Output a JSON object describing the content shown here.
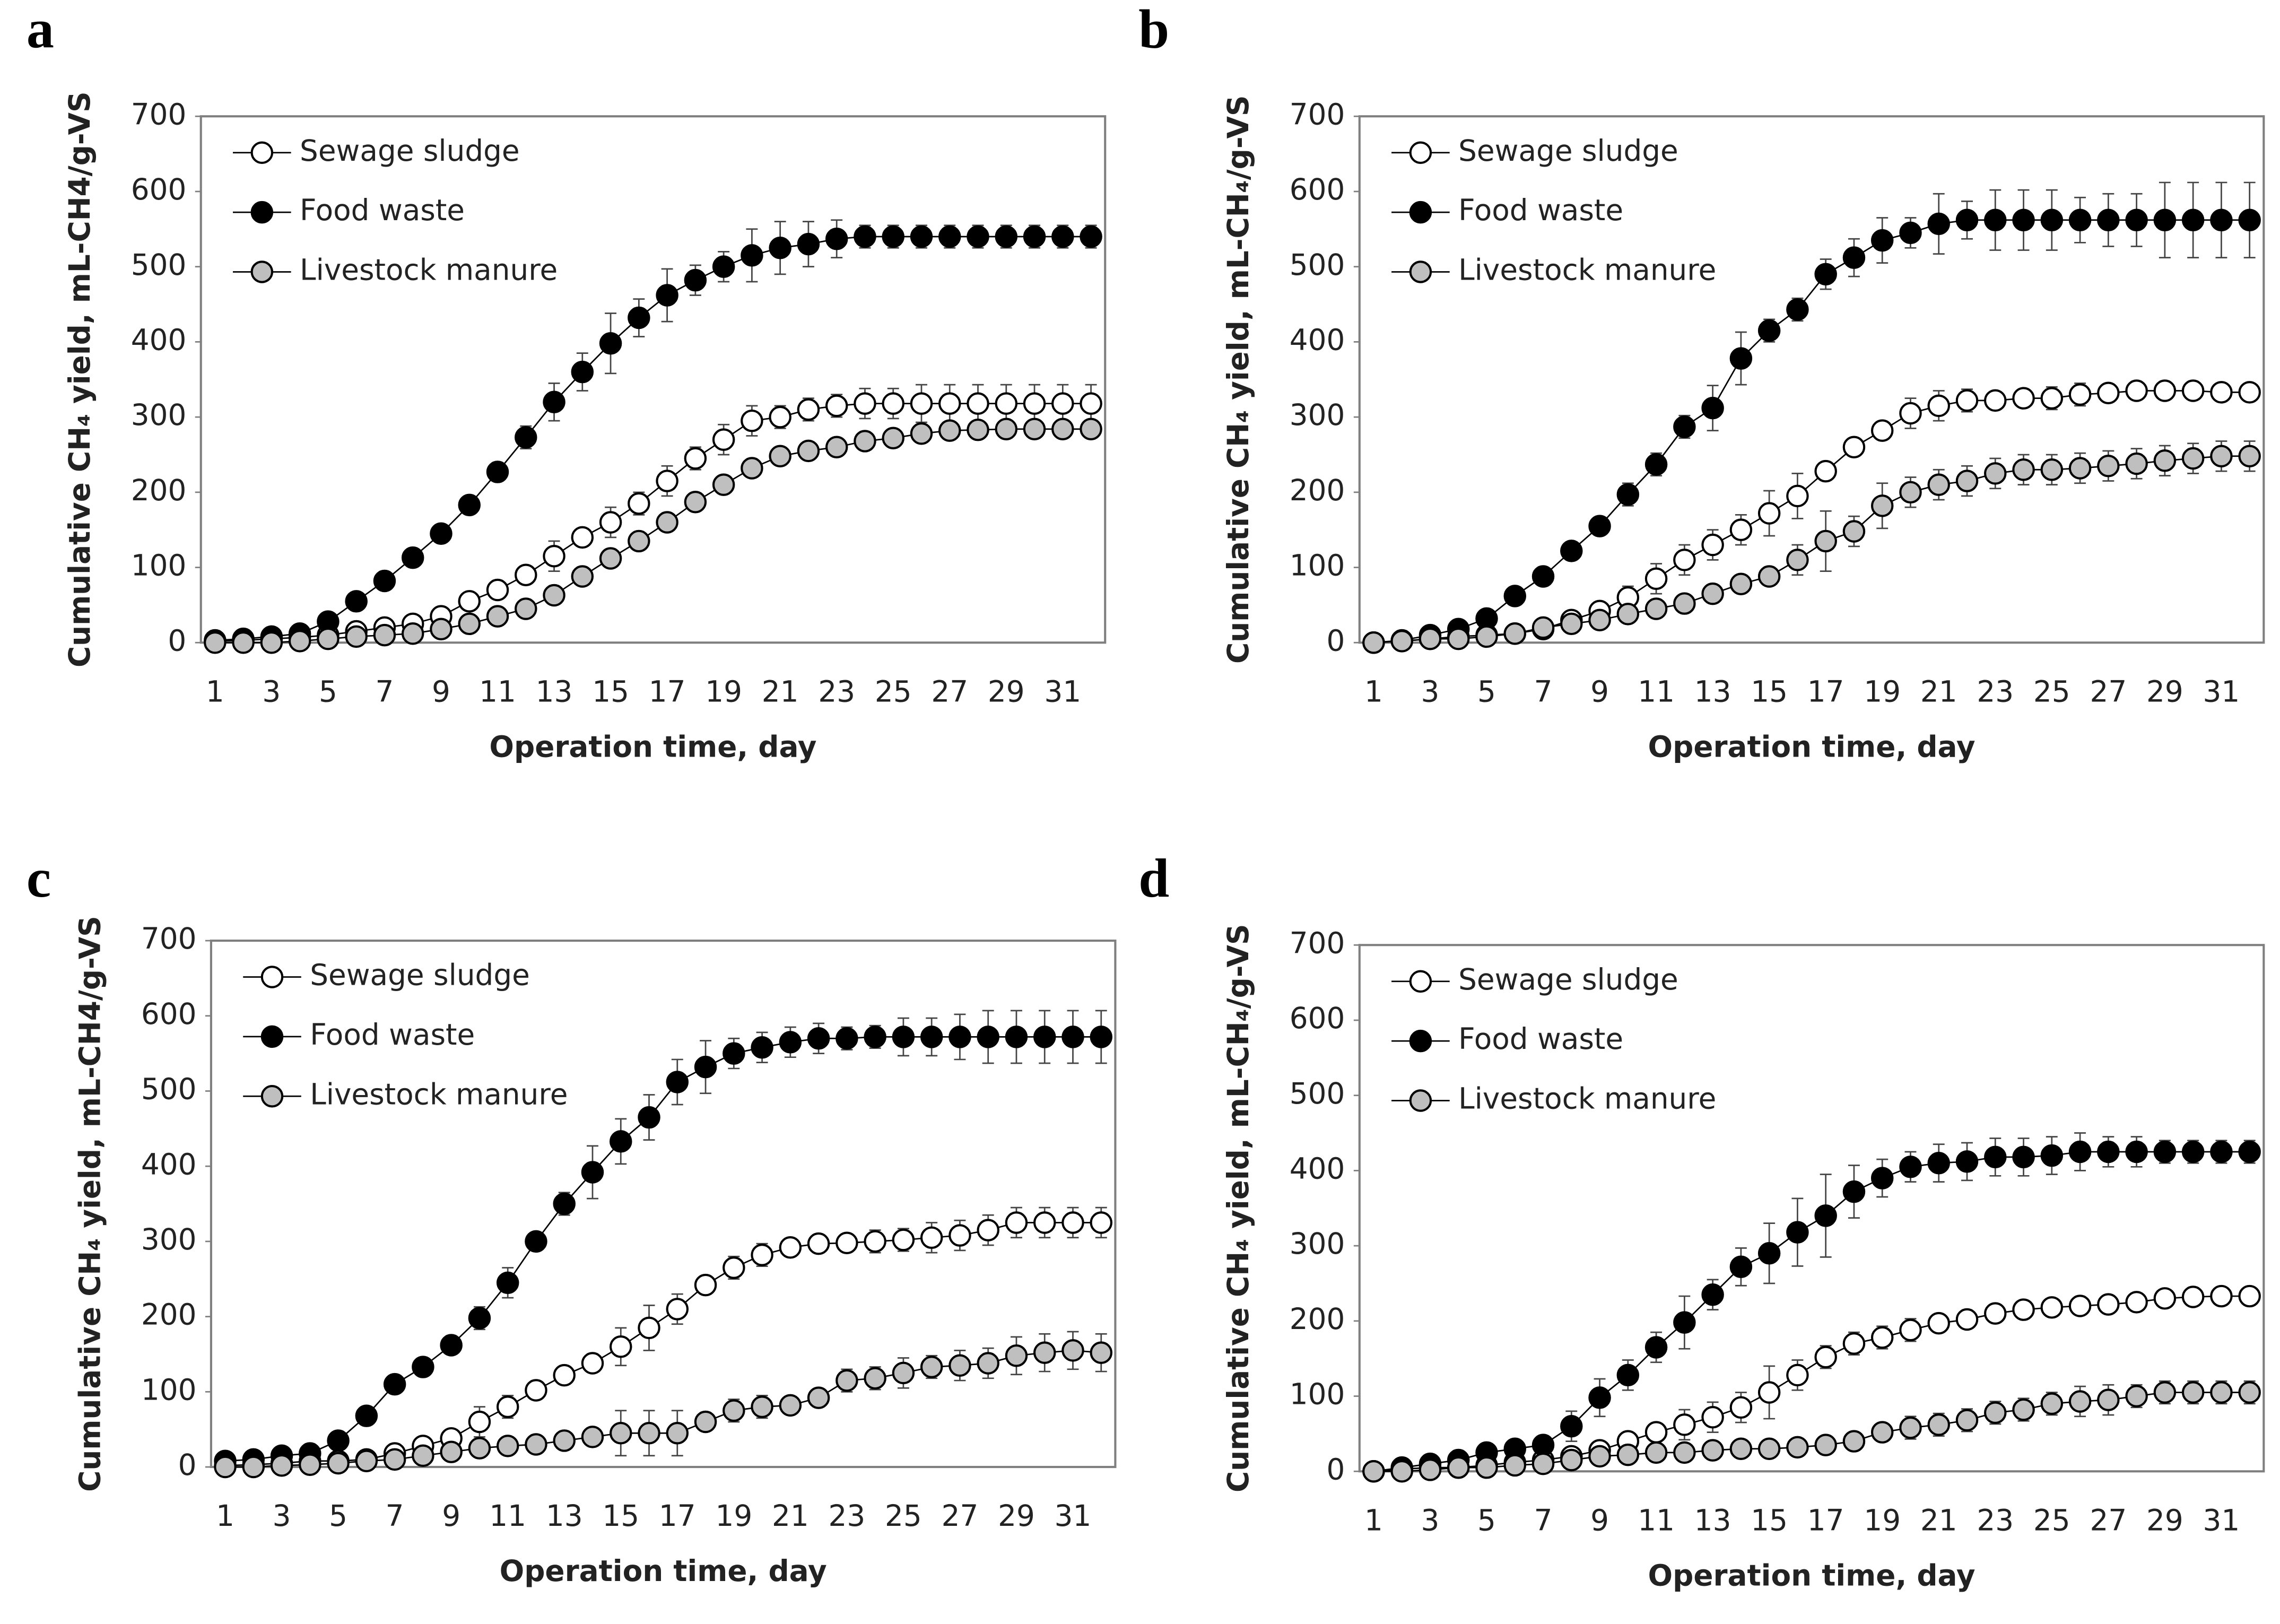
{
  "chart_data": [
    {
      "type": "line",
      "panel_label": "a",
      "y_label": "Cumulative CH₄ yield, mL-CH4/g-VS",
      "x_label": "Operation time, day",
      "categories": [
        "1",
        null,
        "3",
        null,
        "5",
        null,
        "7",
        null,
        "9",
        null,
        "11",
        null,
        "13",
        null,
        "15",
        null,
        "17",
        null,
        "19",
        null,
        "21",
        null,
        "23",
        null,
        "25",
        null,
        "27",
        null,
        "29",
        null,
        "31",
        null
      ],
      "ylim": [
        0,
        700
      ],
      "yticks": [
        0,
        100,
        200,
        300,
        400,
        500,
        600,
        700
      ],
      "grid": false,
      "legend": "upper left",
      "series": [
        {
          "name": "Sewage sludge",
          "color": "#ffffff",
          "values": [
            2,
            3,
            5,
            7,
            10,
            15,
            20,
            25,
            35,
            55,
            70,
            90,
            115,
            140,
            160,
            185,
            215,
            245,
            270,
            295,
            300,
            310,
            315,
            318,
            318,
            318,
            318,
            318,
            318,
            318,
            318,
            318
          ],
          "errors": [
            2,
            2,
            2,
            2,
            3,
            3,
            3,
            4,
            5,
            8,
            8,
            8,
            20,
            10,
            20,
            15,
            20,
            15,
            20,
            20,
            15,
            15,
            15,
            20,
            20,
            25,
            25,
            25,
            25,
            25,
            25,
            25
          ]
        },
        {
          "name": "Food waste",
          "color": "#000000",
          "values": [
            3,
            5,
            8,
            12,
            28,
            55,
            82,
            113,
            145,
            183,
            227,
            273,
            320,
            360,
            398,
            432,
            462,
            482,
            500,
            515,
            525,
            530,
            537,
            540,
            540,
            540,
            540,
            540,
            540,
            540,
            540,
            540
          ],
          "errors": [
            2,
            2,
            2,
            2,
            3,
            5,
            5,
            5,
            8,
            8,
            10,
            15,
            25,
            25,
            40,
            25,
            35,
            20,
            20,
            35,
            35,
            30,
            25,
            15,
            15,
            15,
            15,
            15,
            15,
            15,
            15,
            15
          ]
        },
        {
          "name": "Livestock manure",
          "color": "#bfbfbf",
          "values": [
            0,
            0,
            0,
            2,
            5,
            8,
            10,
            12,
            18,
            25,
            35,
            45,
            63,
            88,
            112,
            135,
            160,
            187,
            210,
            232,
            248,
            255,
            260,
            268,
            272,
            278,
            282,
            283,
            284,
            284,
            284,
            284
          ],
          "errors": [
            2,
            2,
            2,
            2,
            2,
            3,
            3,
            3,
            5,
            5,
            5,
            5,
            8,
            8,
            10,
            10,
            10,
            10,
            10,
            10,
            10,
            10,
            10,
            10,
            10,
            10,
            10,
            10,
            10,
            10,
            10,
            10
          ]
        }
      ]
    },
    {
      "type": "line",
      "panel_label": "b",
      "y_label": "Cumulative CH₄ yield, mL-CH₄/g-VS",
      "x_label": "Operation time, day",
      "categories": [
        "1",
        null,
        "3",
        null,
        "5",
        null,
        "7",
        null,
        "9",
        null,
        "11",
        null,
        "13",
        null,
        "15",
        null,
        "17",
        null,
        "19",
        null,
        "21",
        null,
        "23",
        null,
        "25",
        null,
        "27",
        null,
        "29",
        null,
        "31",
        null
      ],
      "ylim": [
        0,
        700
      ],
      "yticks": [
        0,
        100,
        200,
        300,
        400,
        500,
        600,
        700
      ],
      "grid": false,
      "legend": "upper left",
      "series": [
        {
          "name": "Sewage sludge",
          "color": "#ffffff",
          "values": [
            0,
            2,
            5,
            8,
            10,
            12,
            18,
            30,
            42,
            60,
            85,
            110,
            130,
            150,
            172,
            195,
            228,
            260,
            282,
            305,
            315,
            322,
            322,
            325,
            325,
            330,
            332,
            335,
            335,
            335,
            333,
            333
          ],
          "errors": [
            2,
            2,
            2,
            3,
            3,
            3,
            5,
            8,
            8,
            15,
            20,
            20,
            20,
            20,
            30,
            30,
            10,
            10,
            10,
            20,
            20,
            15,
            10,
            10,
            15,
            15,
            10,
            10,
            10,
            10,
            10,
            10
          ]
        },
        {
          "name": "Food waste",
          "color": "#000000",
          "values": [
            0,
            3,
            10,
            18,
            32,
            62,
            88,
            122,
            155,
            197,
            237,
            287,
            312,
            378,
            415,
            443,
            490,
            512,
            535,
            545,
            557,
            562,
            562,
            562,
            562,
            562,
            562,
            562,
            562,
            562,
            562,
            562
          ],
          "errors": [
            2,
            2,
            3,
            5,
            5,
            8,
            8,
            8,
            10,
            15,
            15,
            15,
            30,
            35,
            15,
            15,
            20,
            25,
            30,
            20,
            40,
            25,
            40,
            40,
            40,
            30,
            35,
            35,
            50,
            50,
            50,
            50
          ]
        },
        {
          "name": "Livestock manure",
          "color": "#bfbfbf",
          "values": [
            0,
            2,
            5,
            5,
            8,
            12,
            20,
            25,
            30,
            38,
            45,
            52,
            65,
            78,
            88,
            110,
            135,
            148,
            182,
            200,
            210,
            215,
            225,
            230,
            230,
            232,
            235,
            238,
            242,
            245,
            248,
            248
          ],
          "errors": [
            2,
            2,
            2,
            3,
            3,
            5,
            5,
            5,
            5,
            10,
            10,
            10,
            10,
            10,
            10,
            20,
            40,
            20,
            30,
            20,
            20,
            20,
            20,
            20,
            20,
            20,
            20,
            20,
            20,
            20,
            20,
            20
          ]
        }
      ]
    },
    {
      "type": "line",
      "panel_label": "c",
      "y_label": "Cumulative CH₄ yield, mL-CH4/g-VS",
      "x_label": "Operation time, day",
      "categories": [
        "1",
        null,
        "3",
        null,
        "5",
        null,
        "7",
        null,
        "9",
        null,
        "11",
        null,
        "13",
        null,
        "15",
        null,
        "17",
        null,
        "19",
        null,
        "21",
        null,
        "23",
        null,
        "25",
        null,
        "27",
        null,
        "29",
        null,
        "31",
        null
      ],
      "ylim": [
        0,
        700
      ],
      "yticks": [
        0,
        100,
        200,
        300,
        400,
        500,
        600,
        700
      ],
      "grid": false,
      "legend": "upper left",
      "series": [
        {
          "name": "Sewage sludge",
          "color": "#ffffff",
          "values": [
            2,
            3,
            5,
            8,
            8,
            10,
            18,
            28,
            38,
            60,
            80,
            102,
            122,
            138,
            160,
            185,
            210,
            242,
            265,
            282,
            292,
            297,
            298,
            300,
            302,
            305,
            308,
            315,
            325,
            325,
            325,
            325
          ],
          "errors": [
            2,
            2,
            2,
            2,
            2,
            3,
            5,
            5,
            8,
            20,
            15,
            10,
            8,
            8,
            25,
            30,
            20,
            10,
            15,
            15,
            12,
            12,
            12,
            15,
            15,
            20,
            20,
            20,
            20,
            20,
            20,
            20
          ]
        },
        {
          "name": "Food waste",
          "color": "#000000",
          "values": [
            8,
            10,
            15,
            18,
            35,
            68,
            110,
            133,
            162,
            198,
            245,
            300,
            350,
            392,
            433,
            465,
            512,
            532,
            550,
            558,
            565,
            570,
            570,
            572,
            572,
            572,
            572,
            572,
            572,
            572,
            572,
            572
          ],
          "errors": [
            2,
            2,
            3,
            3,
            5,
            5,
            5,
            5,
            10,
            15,
            20,
            10,
            15,
            35,
            30,
            30,
            30,
            35,
            20,
            20,
            20,
            20,
            15,
            15,
            25,
            25,
            30,
            35,
            35,
            35,
            35,
            35
          ]
        },
        {
          "name": "Livestock manure",
          "color": "#bfbfbf",
          "values": [
            0,
            0,
            2,
            3,
            5,
            8,
            10,
            15,
            20,
            25,
            28,
            30,
            35,
            40,
            45,
            45,
            45,
            60,
            75,
            80,
            82,
            92,
            115,
            118,
            125,
            133,
            135,
            138,
            148,
            152,
            155,
            152
          ],
          "errors": [
            2,
            2,
            2,
            2,
            2,
            3,
            3,
            3,
            5,
            5,
            5,
            5,
            5,
            5,
            30,
            30,
            30,
            10,
            15,
            15,
            10,
            10,
            15,
            15,
            20,
            15,
            20,
            20,
            25,
            25,
            25,
            25
          ]
        }
      ]
    },
    {
      "type": "line",
      "panel_label": "d",
      "y_label": "Cumulative CH₄ yield, mL-CH₄/g-VS",
      "x_label": "Operation time, day",
      "categories": [
        "1",
        null,
        "3",
        null,
        "5",
        null,
        "7",
        null,
        "9",
        null,
        "11",
        null,
        "13",
        null,
        "15",
        null,
        "17",
        null,
        "19",
        null,
        "21",
        null,
        "23",
        null,
        "25",
        null,
        "27",
        null,
        "29",
        null,
        "31",
        null
      ],
      "ylim": [
        0,
        700
      ],
      "yticks": [
        0,
        100,
        200,
        300,
        400,
        500,
        600,
        700
      ],
      "grid": false,
      "legend": "upper left",
      "series": [
        {
          "name": "Sewage sludge",
          "color": "#ffffff",
          "values": [
            0,
            3,
            5,
            5,
            8,
            12,
            15,
            20,
            28,
            40,
            52,
            62,
            72,
            85,
            105,
            128,
            152,
            170,
            178,
            188,
            197,
            202,
            210,
            215,
            218,
            220,
            222,
            225,
            230,
            232,
            233,
            233
          ],
          "errors": [
            2,
            2,
            2,
            2,
            2,
            3,
            3,
            5,
            5,
            10,
            10,
            20,
            20,
            20,
            35,
            20,
            15,
            15,
            15,
            15,
            10,
            10,
            10,
            10,
            10,
            10,
            10,
            10,
            10,
            10,
            10,
            10
          ]
        },
        {
          "name": "Food waste",
          "color": "#000000",
          "values": [
            0,
            5,
            10,
            15,
            25,
            30,
            35,
            60,
            98,
            128,
            165,
            198,
            235,
            272,
            290,
            318,
            340,
            372,
            390,
            405,
            410,
            412,
            418,
            418,
            420,
            425,
            425,
            425,
            425,
            425,
            425,
            425
          ],
          "errors": [
            2,
            2,
            3,
            3,
            3,
            5,
            5,
            20,
            25,
            20,
            20,
            35,
            20,
            25,
            40,
            45,
            55,
            35,
            25,
            20,
            25,
            25,
            25,
            25,
            25,
            25,
            20,
            20,
            15,
            15,
            15,
            15
          ]
        },
        {
          "name": "Livestock manure",
          "color": "#bfbfbf",
          "values": [
            0,
            0,
            2,
            5,
            5,
            8,
            10,
            15,
            20,
            22,
            25,
            25,
            28,
            30,
            30,
            32,
            35,
            40,
            52,
            58,
            62,
            68,
            78,
            82,
            90,
            93,
            95,
            100,
            105,
            105,
            105,
            105
          ],
          "errors": [
            2,
            2,
            2,
            2,
            2,
            2,
            3,
            3,
            5,
            5,
            5,
            5,
            5,
            5,
            5,
            5,
            10,
            5,
            10,
            15,
            15,
            15,
            15,
            15,
            15,
            20,
            20,
            15,
            15,
            15,
            15,
            15
          ]
        }
      ]
    }
  ]
}
